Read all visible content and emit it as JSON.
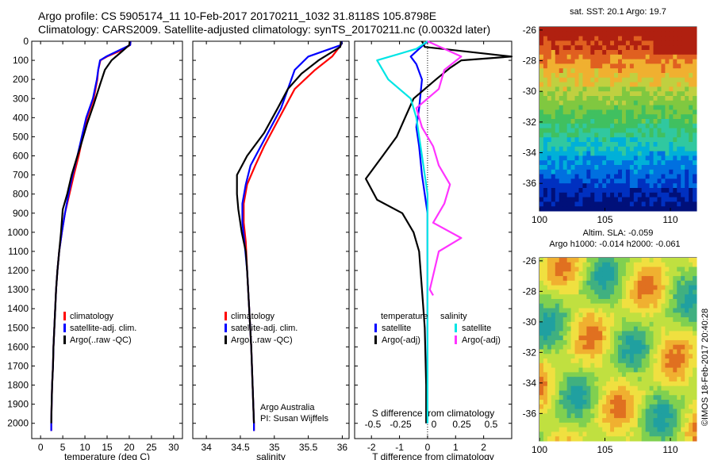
{
  "header": {
    "line1": "Argo profile: CS 5905174_11  10-Feb-2017 20170211_1032  31.8118S 105.8798E",
    "line2": "Climatology: CARS2009. Satellite-adjusted climatology: synTS_20170211.nc (0.0032d later)"
  },
  "colors": {
    "climatology": "#ff0000",
    "satellite": "#0000ff",
    "argo": "#000000",
    "sal_satellite": "#00e5e5",
    "sal_argo": "#ff33ff"
  },
  "chart_data": [
    {
      "type": "line",
      "xlabel": "temperature (deg C)",
      "xlim": [
        -2,
        32
      ],
      "ylim": [
        2080,
        0
      ],
      "xticks": [
        0,
        5,
        10,
        15,
        20,
        25,
        30
      ],
      "yticks": [
        0,
        100,
        200,
        300,
        400,
        500,
        600,
        700,
        800,
        900,
        1000,
        1100,
        1200,
        1300,
        1400,
        1500,
        1600,
        1700,
        1800,
        1900,
        2000
      ],
      "legend": [
        "climatology",
        "satellite-adj. clim.",
        "Argo(..raw -QC)"
      ],
      "series": [
        {
          "name": "climatology",
          "values": [
            [
              20.3,
              0
            ],
            [
              20.2,
              20
            ],
            [
              18,
              50
            ],
            [
              15,
              80
            ],
            [
              13.5,
              100
            ],
            [
              13,
              150
            ],
            [
              12.8,
              200
            ],
            [
              12,
              300
            ],
            [
              10.5,
              400
            ],
            [
              9.5,
              500
            ],
            [
              8.6,
              600
            ],
            [
              7.5,
              700
            ],
            [
              6.5,
              800
            ],
            [
              5.5,
              900
            ],
            [
              4.8,
              1000
            ],
            [
              4.2,
              1100
            ],
            [
              3.8,
              1200
            ],
            [
              3.5,
              1300
            ],
            [
              3.3,
              1400
            ],
            [
              3.1,
              1500
            ],
            [
              2.9,
              1600
            ],
            [
              2.8,
              1700
            ],
            [
              2.6,
              1800
            ],
            [
              2.5,
              1900
            ],
            [
              2.4,
              2000
            ],
            [
              2.4,
              2040
            ]
          ]
        },
        {
          "name": "satellite-adj. clim.",
          "values": [
            [
              20.3,
              0
            ],
            [
              20.2,
              20
            ],
            [
              17.5,
              50
            ],
            [
              14.8,
              80
            ],
            [
              13.4,
              100
            ],
            [
              13,
              150
            ],
            [
              12.7,
              200
            ],
            [
              11.8,
              300
            ],
            [
              10.3,
              400
            ],
            [
              9.3,
              500
            ],
            [
              8.3,
              600
            ],
            [
              7.2,
              700
            ],
            [
              6.3,
              800
            ],
            [
              5.5,
              900
            ],
            [
              4.8,
              1000
            ],
            [
              4.2,
              1100
            ],
            [
              3.8,
              1200
            ],
            [
              3.5,
              1300
            ],
            [
              3.3,
              1400
            ],
            [
              3.1,
              1500
            ],
            [
              2.9,
              1600
            ],
            [
              2.8,
              1700
            ],
            [
              2.6,
              1800
            ],
            [
              2.5,
              1900
            ],
            [
              2.4,
              2000
            ],
            [
              2.4,
              2040
            ]
          ]
        },
        {
          "name": "Argo(..raw -QC)",
          "values": [
            [
              20.1,
              0
            ],
            [
              20,
              20
            ],
            [
              18,
              60
            ],
            [
              16,
              100
            ],
            [
              14.5,
              150
            ],
            [
              13.5,
              220
            ],
            [
              12,
              330
            ],
            [
              10.5,
              430
            ],
            [
              9,
              550
            ],
            [
              8.3,
              600
            ],
            [
              7,
              700
            ],
            [
              6,
              800
            ],
            [
              5,
              880
            ],
            [
              4.6,
              1000
            ],
            [
              4.2,
              1100
            ],
            [
              3.8,
              1200
            ],
            [
              3.5,
              1300
            ],
            [
              3.3,
              1400
            ],
            [
              3.1,
              1500
            ],
            [
              2.9,
              1600
            ],
            [
              2.8,
              1700
            ],
            [
              2.6,
              1800
            ],
            [
              2.5,
              1900
            ],
            [
              2.4,
              2000
            ]
          ]
        }
      ]
    },
    {
      "type": "line",
      "xlabel": "salinity",
      "xlim": [
        33.8,
        36.1
      ],
      "ylim": [
        2080,
        0
      ],
      "xticks": [
        34,
        34.5,
        35,
        35.5,
        36
      ],
      "legend": [
        "climatology",
        "satellite-adj. clim.",
        "Argo(..raw -QC)"
      ],
      "annotation": [
        "Argo Australia",
        "PI: Susan Wijffels"
      ],
      "series": [
        {
          "name": "climatology",
          "values": [
            [
              35.98,
              0
            ],
            [
              35.98,
              20
            ],
            [
              35.85,
              80
            ],
            [
              35.6,
              150
            ],
            [
              35.3,
              250
            ],
            [
              35.15,
              350
            ],
            [
              35,
              450
            ],
            [
              34.85,
              550
            ],
            [
              34.72,
              650
            ],
            [
              34.6,
              750
            ],
            [
              34.55,
              850
            ],
            [
              34.55,
              950
            ],
            [
              34.58,
              1050
            ],
            [
              34.6,
              1200
            ],
            [
              34.63,
              1400
            ],
            [
              34.66,
              1600
            ],
            [
              34.68,
              1800
            ],
            [
              34.7,
              2000
            ],
            [
              34.7,
              2040
            ]
          ]
        },
        {
          "name": "satellite-adj. clim.",
          "values": [
            [
              35.99,
              0
            ],
            [
              35.98,
              20
            ],
            [
              35.5,
              80
            ],
            [
              35.3,
              150
            ],
            [
              35.2,
              250
            ],
            [
              35.1,
              350
            ],
            [
              34.95,
              450
            ],
            [
              34.8,
              550
            ],
            [
              34.65,
              650
            ],
            [
              34.58,
              750
            ],
            [
              34.53,
              850
            ],
            [
              34.53,
              950
            ],
            [
              34.56,
              1050
            ],
            [
              34.6,
              1200
            ],
            [
              34.63,
              1400
            ],
            [
              34.66,
              1600
            ],
            [
              34.68,
              1800
            ],
            [
              34.7,
              2000
            ],
            [
              34.7,
              2040
            ]
          ]
        },
        {
          "name": "Argo(..raw -QC)",
          "values": [
            [
              35.98,
              0
            ],
            [
              35.97,
              30
            ],
            [
              35.65,
              100
            ],
            [
              35.4,
              170
            ],
            [
              35.2,
              250
            ],
            [
              35.05,
              350
            ],
            [
              34.85,
              480
            ],
            [
              34.6,
              600
            ],
            [
              34.45,
              700
            ],
            [
              34.45,
              800
            ],
            [
              34.47,
              880
            ],
            [
              34.52,
              1000
            ],
            [
              34.58,
              1100
            ],
            [
              34.6,
              1200
            ],
            [
              34.63,
              1400
            ],
            [
              34.66,
              1600
            ],
            [
              34.68,
              1800
            ],
            [
              34.7,
              2000
            ]
          ]
        }
      ]
    },
    {
      "type": "line",
      "xlabel": "T difference from climatology",
      "xlabel_top": "S difference from climatology",
      "xlim": [
        -2.6,
        3.0
      ],
      "ylim": [
        2080,
        0
      ],
      "xticks": [
        -2,
        -1,
        0,
        1,
        2
      ],
      "xticks_top": [
        "-0.5",
        "-0.25",
        "0",
        "0.25",
        "0.5"
      ],
      "legend_left": {
        "title": "temperature",
        "items": [
          "satellite",
          "Argo(-adj)"
        ]
      },
      "legend_right": {
        "title": "salinity",
        "items": [
          "satellite",
          "Argo(-adj)"
        ]
      },
      "series": [
        {
          "name": "temperature satellite",
          "values": [
            [
              0,
              0
            ],
            [
              -0.3,
              40
            ],
            [
              -0.6,
              80
            ],
            [
              -0.4,
              120
            ],
            [
              -0.2,
              200
            ],
            [
              -0.3,
              350
            ],
            [
              -0.4,
              450
            ],
            [
              -0.3,
              550
            ],
            [
              -0.2,
              700
            ],
            [
              -0.1,
              800
            ],
            [
              0,
              900
            ],
            [
              0,
              1000
            ],
            [
              0,
              1200
            ],
            [
              0,
              2000
            ]
          ]
        },
        {
          "name": "temperature Argo(-adj)",
          "values": [
            [
              -0.2,
              0
            ],
            [
              -0.1,
              30
            ],
            [
              3.0,
              80
            ],
            [
              1.2,
              100
            ],
            [
              0.8,
              140
            ],
            [
              0.3,
              200
            ],
            [
              -0.5,
              300
            ],
            [
              -0.8,
              400
            ],
            [
              -1.1,
              500
            ],
            [
              -1.6,
              600
            ],
            [
              -2.2,
              720
            ],
            [
              -1.8,
              830
            ],
            [
              -0.9,
              900
            ],
            [
              -0.5,
              1000
            ],
            [
              -0.3,
              1100
            ],
            [
              -0.2,
              1300
            ],
            [
              -0.1,
              1500
            ],
            [
              -0.05,
              1800
            ],
            [
              -0.05,
              2000
            ]
          ]
        },
        {
          "name": "salinity satellite",
          "values": [
            [
              0,
              0
            ],
            [
              -0.1,
              40
            ],
            [
              -0.45,
              100
            ],
            [
              -0.35,
              200
            ],
            [
              -0.15,
              300
            ],
            [
              -0.1,
              400
            ],
            [
              -0.05,
              600
            ],
            [
              0,
              800
            ],
            [
              0,
              1000
            ],
            [
              0,
              2000
            ]
          ]
        },
        {
          "name": "salinity Argo(-adj)",
          "values": [
            [
              0,
              0
            ],
            [
              0.3,
              80
            ],
            [
              0.15,
              150
            ],
            [
              0.1,
              250
            ],
            [
              -0.1,
              350
            ],
            [
              -0.05,
              450
            ],
            [
              0.05,
              550
            ],
            [
              0.1,
              650
            ],
            [
              0.2,
              750
            ],
            [
              0.15,
              850
            ],
            [
              0.05,
              950
            ],
            [
              0.3,
              1030
            ],
            [
              0.1,
              1100
            ],
            [
              0.02,
              1300
            ],
            [
              0.05,
              1330
            ]
          ]
        }
      ]
    },
    {
      "type": "heatmap",
      "title": "sat. SST: 20.1  Argo: 19.7",
      "xticks": [
        100,
        105,
        110
      ],
      "yticks": [
        -26,
        -28,
        -30,
        -32,
        -34,
        -36
      ],
      "xlim": [
        100,
        112
      ],
      "ylim": [
        -37.8,
        -25.8
      ]
    },
    {
      "type": "heatmap",
      "title": "Altim. SLA: -0.059",
      "subtitle": "Argo h1000: -0.014  h2000: -0.061",
      "xticks": [
        100,
        105,
        110
      ],
      "yticks": [
        -26,
        -28,
        -30,
        -32,
        -34,
        -36
      ],
      "xlim": [
        100,
        112
      ],
      "ylim": [
        -37.8,
        -25.8
      ]
    }
  ],
  "side_note": "©IMOS 18-Feb-2017 20:40:28"
}
